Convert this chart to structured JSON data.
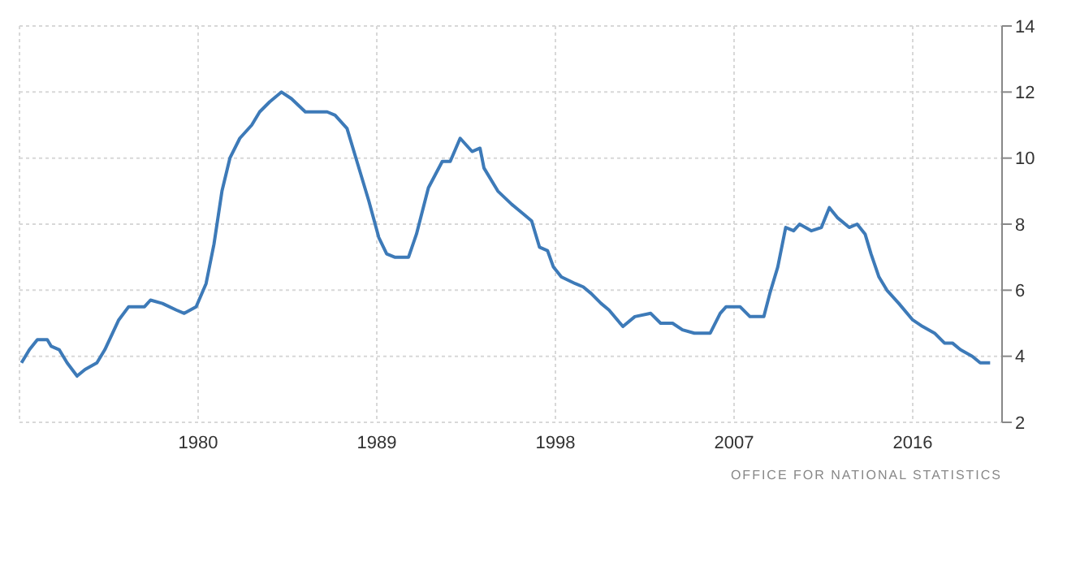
{
  "chart_data": {
    "type": "line",
    "x": [
      1971.1,
      1971.5,
      1971.9,
      1972.4,
      1972.6,
      1973.0,
      1973.4,
      1973.9,
      1974.3,
      1974.9,
      1975.3,
      1976.0,
      1976.5,
      1977.3,
      1977.6,
      1978.2,
      1978.9,
      1979.3,
      1979.9,
      1980.4,
      1980.8,
      1981.2,
      1981.6,
      1982.1,
      1982.7,
      1983.1,
      1983.6,
      1984.2,
      1984.7,
      1985.4,
      1986.5,
      1986.9,
      1987.5,
      1988.0,
      1988.6,
      1989.1,
      1989.5,
      1989.9,
      1990.6,
      1991.0,
      1991.6,
      1992.3,
      1992.7,
      1993.2,
      1993.8,
      1994.2,
      1994.4,
      1995.1,
      1995.8,
      1996.4,
      1996.8,
      1997.2,
      1997.6,
      1997.9,
      1998.3,
      1999.0,
      1999.4,
      1999.8,
      2000.3,
      2000.7,
      2001.4,
      2002.0,
      2002.8,
      2003.3,
      2003.9,
      2004.4,
      2005.0,
      2005.8,
      2006.3,
      2006.6,
      2007.3,
      2007.8,
      2008.5,
      2008.8,
      2009.2,
      2009.6,
      2010.0,
      2010.3,
      2010.9,
      2011.4,
      2011.8,
      2012.2,
      2012.8,
      2013.2,
      2013.6,
      2013.9,
      2014.3,
      2014.7,
      2015.3,
      2016.0,
      2016.5,
      2017.1,
      2017.6,
      2018.0,
      2018.4,
      2019.0,
      2019.4,
      2019.9
    ],
    "series": [
      {
        "color": "#3d7ab8",
        "values": [
          3.8,
          4.2,
          4.5,
          4.5,
          4.3,
          4.2,
          3.8,
          3.4,
          3.6,
          3.8,
          4.2,
          5.1,
          5.5,
          5.5,
          5.7,
          5.6,
          5.4,
          5.3,
          5.5,
          6.2,
          7.4,
          9.0,
          10.0,
          10.6,
          11.0,
          11.4,
          11.7,
          12.0,
          11.8,
          11.4,
          11.4,
          11.3,
          10.9,
          9.9,
          8.7,
          7.6,
          7.1,
          7.0,
          7.0,
          7.7,
          9.1,
          9.9,
          9.9,
          10.6,
          10.2,
          10.3,
          9.7,
          9.0,
          8.6,
          8.3,
          8.1,
          7.3,
          7.2,
          6.7,
          6.4,
          6.2,
          6.1,
          5.9,
          5.6,
          5.4,
          4.9,
          5.2,
          5.3,
          5.0,
          5.0,
          4.8,
          4.7,
          4.7,
          5.3,
          5.5,
          5.5,
          5.2,
          5.2,
          5.9,
          6.7,
          7.9,
          7.8,
          8.0,
          7.8,
          7.9,
          8.5,
          8.2,
          7.9,
          8.0,
          7.7,
          7.1,
          6.4,
          6.0,
          5.6,
          5.1,
          4.9,
          4.7,
          4.4,
          4.4,
          4.2,
          4.0,
          3.8,
          3.8
        ]
      }
    ],
    "xlim": [
      1971,
      2020.5
    ],
    "xticks": [
      1980,
      1989,
      1998,
      2007,
      2016
    ],
    "ylim": [
      2,
      14
    ],
    "yticks": [
      2,
      4,
      6,
      8,
      10,
      12,
      14
    ],
    "grid": true,
    "marker": "none",
    "line_style": "solid",
    "annotations": [
      "OFFICE FOR NATIONAL STATISTICS"
    ]
  }
}
